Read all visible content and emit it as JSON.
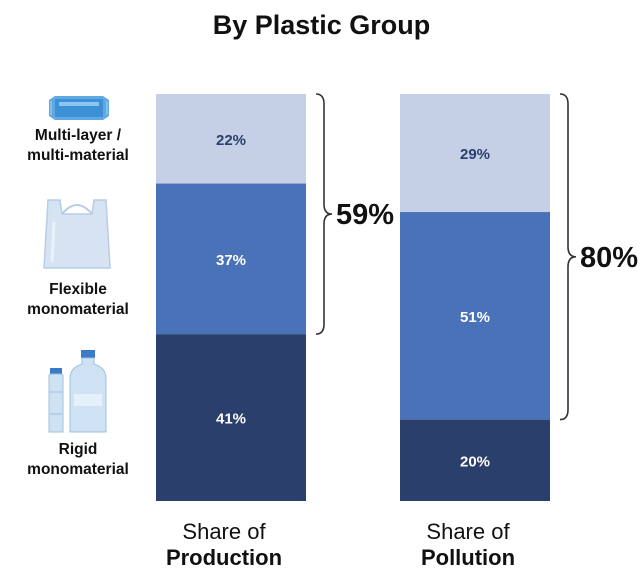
{
  "chart_data": {
    "type": "bar",
    "stacked": true,
    "title": "By Plastic Group",
    "categories": [
      {
        "line1": "Share of",
        "line2": "Production"
      },
      {
        "line1": "Share of",
        "line2": "Pollution"
      }
    ],
    "series": [
      {
        "name": "Rigid monomaterial",
        "label_lines": [
          "Rigid",
          "monomaterial"
        ],
        "color": "#2b3f6d",
        "text_color": "#ffffff",
        "values": [
          41,
          20
        ]
      },
      {
        "name": "Flexible monomaterial",
        "label_lines": [
          "Flexible",
          "monomaterial"
        ],
        "color": "#4a72b8",
        "text_color": "#ffffff",
        "values": [
          37,
          51
        ]
      },
      {
        "name": "Multi-layer / multi-material",
        "label_lines": [
          "Multi-layer /",
          "multi-material"
        ],
        "color": "#c5cfe6",
        "text_color": "#2b3f6d",
        "values": [
          22,
          29
        ]
      }
    ],
    "value_suffix": "%",
    "brackets": [
      {
        "category_index": 0,
        "label": "59%",
        "value": 59
      },
      {
        "category_index": 1,
        "label": "80%",
        "value": 80
      }
    ],
    "ylim": [
      0,
      100
    ]
  },
  "icons": [
    "plastic-wrapper-icon",
    "plastic-bag-icon",
    "plastic-bottles-icon"
  ]
}
